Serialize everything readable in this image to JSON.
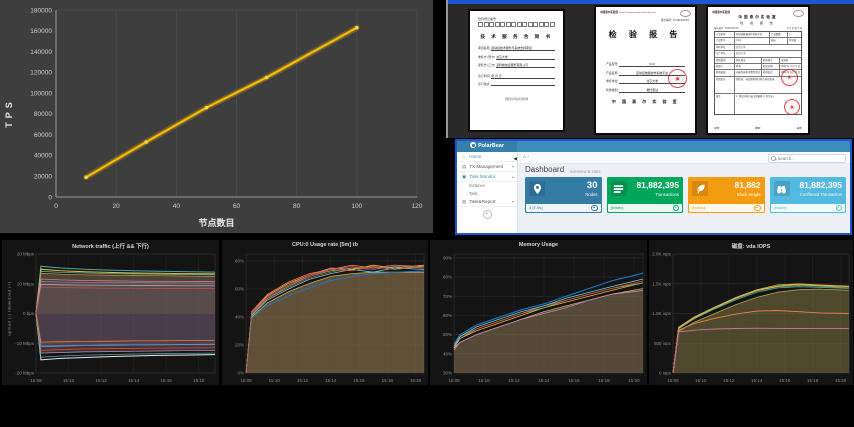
{
  "chart_data": [
    {
      "type": "line",
      "title": "",
      "xlabel": "节点数目",
      "ylabel": "TPS",
      "x": [
        10,
        30,
        50,
        70,
        100
      ],
      "y": [
        19000,
        53000,
        86000,
        115000,
        163000
      ],
      "xlim": [
        0,
        120
      ],
      "ylim": [
        0,
        180000
      ],
      "xtick_step": 20,
      "ytick_step": 20000,
      "line_color": "#ffc000",
      "bg_color": "#3e3e3e",
      "grid": "vertical-only"
    },
    {
      "type": "area",
      "title": "Network traffic (上行 && 下行)",
      "ylabel": "upload (-)  /download (+)",
      "legend_position": "none",
      "ymin": -20,
      "ymax": 20,
      "tmax": 11,
      "yticks": [
        {
          "v": 20,
          "l": "20 Mbps"
        },
        {
          "v": 10,
          "l": "10 Mbps"
        },
        {
          "v": 0,
          "l": "0 bps"
        },
        {
          "v": -10,
          "l": "-10 Mbps"
        },
        {
          "v": -20,
          "l": "-20 Mbps"
        }
      ],
      "xticks": [
        {
          "t": 0,
          "l": "15:08"
        },
        {
          "t": 2,
          "l": "15:10"
        },
        {
          "t": 4,
          "l": "15:12"
        },
        {
          "t": 6,
          "l": "15:14"
        },
        {
          "t": 8,
          "l": "15:16"
        },
        {
          "t": 10,
          "l": "15:18"
        }
      ],
      "t": [
        0,
        0.3,
        1.5,
        3,
        4.5,
        6,
        7.5,
        9,
        11
      ],
      "series": [
        {
          "color": "#c0a080",
          "w": 0.7,
          "fill": "rgba(168,138,100,0.40)",
          "fillTo": 0,
          "values": [
            0,
            13.5,
            13.2,
            13.0,
            12.9,
            12.8,
            12.7,
            12.6,
            12.5
          ]
        },
        {
          "color": "#c090b0",
          "w": 0.7,
          "fill": "rgba(150,110,130,0.35)",
          "fillTo": 0,
          "values": [
            0,
            -13.3,
            -13.1,
            -12.9,
            -12.8,
            -12.7,
            -12.6,
            -12.5,
            -12.5
          ]
        },
        {
          "color": "#9888b8",
          "w": 0.6,
          "fill": "rgba(120,100,140,0.25)",
          "fillTo": 0,
          "values": [
            0,
            10.8,
            10.6,
            10.5,
            10.4,
            10.4,
            10.3,
            10.3,
            10.2
          ]
        },
        {
          "color": "#887898",
          "w": 0.6,
          "fill": "rgba(100,90,120,0.25)",
          "fillTo": 0,
          "values": [
            0,
            -10.9,
            -10.7,
            -10.6,
            -10.5,
            -10.5,
            -10.4,
            -10.4,
            -10.3
          ]
        },
        {
          "color": "#4fa8a8",
          "w": 1,
          "values": [
            0,
            15.9,
            15.3,
            14.9,
            14.6,
            14.4,
            14.2,
            14.1,
            13.9
          ]
        },
        {
          "color": "#d9c34d",
          "w": 1,
          "values": [
            0,
            14.9,
            14.4,
            14.0,
            13.8,
            13.6,
            13.5,
            13.4,
            13.3
          ]
        },
        {
          "color": "#7eb26d",
          "w": 0.8,
          "values": [
            0,
            14.2,
            13.8,
            13.6,
            13.4,
            13.3,
            13.2,
            13.1,
            13.0
          ]
        },
        {
          "color": "#d87ca0",
          "w": 0.8,
          "values": [
            0,
            11.6,
            11.3,
            11.1,
            11.0,
            10.9,
            10.8,
            10.8,
            10.7
          ]
        },
        {
          "color": "#b8b8b8",
          "w": 0.7,
          "values": [
            0,
            9.8,
            9.6,
            9.5,
            9.5,
            9.4,
            9.4,
            9.3,
            9.3
          ]
        },
        {
          "color": "#c05050",
          "w": 0.7,
          "values": [
            0,
            8.9,
            8.7,
            8.6,
            8.5,
            8.5,
            8.4,
            8.4,
            8.4
          ]
        },
        {
          "color": "#e8e8e8",
          "w": 1,
          "values": [
            0,
            -15.6,
            -15.1,
            -14.8,
            -14.5,
            -14.3,
            -14.1,
            -14.0,
            -13.8
          ]
        },
        {
          "color": "#4fa8a8",
          "w": 0.8,
          "values": [
            0,
            -14.7,
            -14.3,
            -14.0,
            -13.8,
            -13.6,
            -13.5,
            -13.4,
            -13.3
          ]
        },
        {
          "color": "#e24d42",
          "w": 0.7,
          "values": [
            0,
            -12.4,
            -12.1,
            -11.9,
            -11.8,
            -11.7,
            -11.6,
            -11.6,
            -11.5
          ]
        },
        {
          "color": "#5794c8",
          "w": 0.8,
          "values": [
            0,
            -11.2,
            -11.0,
            -10.8,
            -10.7,
            -10.6,
            -10.6,
            -10.5,
            -10.5
          ]
        },
        {
          "color": "#ef843c",
          "w": 0.8,
          "values": [
            0,
            -9.6,
            -9.5,
            -9.4,
            -9.3,
            -9.2,
            -9.2,
            -9.1,
            -9.1
          ]
        }
      ]
    },
    {
      "type": "area",
      "title": "CPU:0 Usage rate [5m] tb",
      "legend_position": "none",
      "ymin": 0,
      "ymax": 85,
      "tmax": 12.6,
      "yticks": [
        {
          "v": 80,
          "l": "80%"
        },
        {
          "v": 60,
          "l": "60%"
        },
        {
          "v": 40,
          "l": "40%"
        },
        {
          "v": 20,
          "l": "20%"
        },
        {
          "v": 0,
          "l": "0%"
        }
      ],
      "xticks": [
        {
          "t": 0,
          "l": "15:08"
        },
        {
          "t": 2,
          "l": "15:10"
        },
        {
          "t": 4,
          "l": "15:12"
        },
        {
          "t": 6,
          "l": "15:14"
        },
        {
          "t": 8,
          "l": "15:16"
        },
        {
          "t": 10,
          "l": "15:18"
        },
        {
          "t": 12,
          "l": "15:20"
        }
      ],
      "t": [
        0,
        0.4,
        1.5,
        3,
        4.5,
        6,
        7.5,
        9,
        10.5,
        12.6
      ],
      "series": [
        {
          "color": "#c8a96a",
          "w": 0.8,
          "fill": "rgba(160,130,85,0.55)",
          "values": [
            0,
            40,
            50,
            58,
            64,
            69,
            71,
            72,
            72,
            72
          ]
        },
        {
          "color": "#7eb26d",
          "w": 0.8,
          "values": [
            0,
            42,
            53,
            62,
            69,
            73,
            75,
            74,
            76,
            75
          ]
        },
        {
          "color": "#eab839",
          "w": 0.8,
          "values": [
            0,
            43,
            55,
            64,
            70,
            75,
            74,
            77,
            75,
            77
          ]
        },
        {
          "color": "#6ed0e0",
          "w": 0.8,
          "values": [
            0,
            41,
            52,
            60,
            67,
            71,
            74,
            72,
            75,
            74
          ]
        },
        {
          "color": "#ef843c",
          "w": 0.8,
          "values": [
            0,
            44,
            56,
            65,
            71,
            74,
            77,
            75,
            77,
            76
          ]
        },
        {
          "color": "#e24d42",
          "w": 0.8,
          "values": [
            0,
            42,
            54,
            63,
            70,
            74,
            73,
            76,
            74,
            76
          ]
        },
        {
          "color": "#1f78c1",
          "w": 0.9,
          "values": [
            0,
            39,
            48,
            55,
            61,
            66,
            69,
            71,
            72,
            73
          ]
        },
        {
          "color": "#ba43a9",
          "w": 0.7,
          "values": [
            0,
            43,
            54,
            63,
            69,
            74,
            76,
            74,
            77,
            75
          ]
        },
        {
          "color": "#b87333",
          "w": 0.7,
          "values": [
            0,
            42,
            53,
            61,
            68,
            72,
            75,
            76,
            74,
            76
          ]
        }
      ]
    },
    {
      "type": "area",
      "title": "Memory Usage",
      "legend_position": "none",
      "ymin": 30,
      "ymax": 92,
      "tmax": 12.6,
      "yticks": [
        {
          "v": 90,
          "l": "90%"
        },
        {
          "v": 80,
          "l": "80%"
        },
        {
          "v": 70,
          "l": "70%"
        },
        {
          "v": 60,
          "l": "60%"
        },
        {
          "v": 50,
          "l": "50%"
        },
        {
          "v": 40,
          "l": "40%"
        },
        {
          "v": 30,
          "l": "30%"
        }
      ],
      "xticks": [
        {
          "t": 0,
          "l": "15:08"
        },
        {
          "t": 2,
          "l": "15:10"
        },
        {
          "t": 4,
          "l": "15:12"
        },
        {
          "t": 6,
          "l": "15:14"
        },
        {
          "t": 8,
          "l": "15:16"
        },
        {
          "t": 10,
          "l": "15:18"
        },
        {
          "t": 12,
          "l": "15:20"
        }
      ],
      "t": [
        0,
        0.4,
        1.5,
        3,
        4.5,
        6,
        7.5,
        9,
        10.5,
        12.6
      ],
      "series": [
        {
          "color": "#c8a96a",
          "w": 0.8,
          "fill": "rgba(150,125,90,0.50)",
          "values": [
            43,
            46,
            50,
            54,
            58,
            62,
            65,
            68,
            71,
            74
          ]
        },
        {
          "color": "#d683ce",
          "w": 0.7,
          "values": [
            42,
            46,
            50,
            54,
            58,
            61,
            64,
            68,
            71,
            73
          ]
        },
        {
          "color": "#eab839",
          "w": 0.8,
          "values": [
            43,
            48,
            52,
            56,
            60,
            64,
            67,
            70,
            73,
            77
          ]
        },
        {
          "color": "#7eb26d",
          "w": 0.8,
          "values": [
            44,
            48,
            53,
            57,
            61,
            64,
            68,
            71,
            74,
            77
          ]
        },
        {
          "color": "#e24d42",
          "w": 0.8,
          "values": [
            44,
            49,
            53,
            57,
            61,
            65,
            68,
            71,
            74,
            78
          ]
        },
        {
          "color": "#6ed0e0",
          "w": 0.8,
          "values": [
            44,
            49,
            54,
            58,
            62,
            65,
            69,
            72,
            75,
            79
          ]
        },
        {
          "color": "#1f78c1",
          "w": 1.1,
          "values": [
            45,
            50,
            55,
            59,
            63,
            66,
            70,
            74,
            78,
            82
          ]
        }
      ]
    },
    {
      "type": "area",
      "title": "磁盘: vda IOPS",
      "legend_position": "none",
      "ymin": 0,
      "ymax": 2000,
      "tmax": 12.6,
      "yticks": [
        {
          "v": 2000,
          "l": "2.0K iops"
        },
        {
          "v": 1500,
          "l": "1.5K iops"
        },
        {
          "v": 1000,
          "l": "1.0K iops"
        },
        {
          "v": 500,
          "l": "500 iops"
        },
        {
          "v": 0,
          "l": "0 iops"
        }
      ],
      "xticks": [
        {
          "t": 0,
          "l": "15:08"
        },
        {
          "t": 2,
          "l": "15:10"
        },
        {
          "t": 4,
          "l": "15:12"
        },
        {
          "t": 6,
          "l": "15:14"
        },
        {
          "t": 8,
          "l": "15:16"
        },
        {
          "t": 10,
          "l": "15:18"
        },
        {
          "t": 12,
          "l": "15:20"
        }
      ],
      "t": [
        0,
        0.4,
        1.5,
        3,
        4.5,
        6,
        7.5,
        9,
        10.5,
        12.6
      ],
      "series": [
        {
          "color": "#b3a04a",
          "w": 0.8,
          "fill": "rgba(135,125,70,0.50)",
          "values": [
            0,
            700,
            850,
            1000,
            1150,
            1270,
            1360,
            1400,
            1410,
            1390
          ]
        },
        {
          "color": "#5aa8a0",
          "w": 0.8,
          "values": [
            0,
            740,
            910,
            1080,
            1230,
            1360,
            1430,
            1450,
            1440,
            1420
          ]
        },
        {
          "color": "#7eb26d",
          "w": 0.8,
          "values": [
            0,
            750,
            920,
            1090,
            1250,
            1380,
            1450,
            1470,
            1460,
            1430
          ]
        },
        {
          "color": "#eab839",
          "w": 0.9,
          "values": [
            0,
            760,
            930,
            1100,
            1260,
            1390,
            1460,
            1490,
            1470,
            1450
          ]
        },
        {
          "color": "#c8b050",
          "w": 0.8,
          "values": [
            0,
            770,
            940,
            1110,
            1270,
            1400,
            1480,
            1500,
            1480,
            1460
          ]
        },
        {
          "color": "#ef843c",
          "w": 0.9,
          "values": [
            0,
            720,
            830,
            920,
            990,
            1040,
            1050,
            1030,
            1010,
            1000
          ]
        },
        {
          "color": "#d06ca0",
          "w": 0.9,
          "values": [
            0,
            690,
            720,
            740,
            748,
            752,
            750,
            748,
            747,
            750
          ]
        }
      ]
    }
  ],
  "docs": {
    "contract": {
      "reg_label": "合同登记编号:",
      "title": "技 术 服 务 合 同 书",
      "fields": [
        {
          "label": "项目名称:",
          "value": "区块链技术服务与系统支持项目"
        },
        {
          "label": "委托方:(甲方)",
          "value": "北京大学"
        },
        {
          "label": "受托方:(乙方)",
          "value": "某科技信息服务有限公司"
        },
        {
          "label": "签订时间:",
          "value": "年    月    日"
        },
        {
          "label": "签订地点:",
          "value": ""
        }
      ],
      "footer": "国家科学技术部印制"
    },
    "report_cover": {
      "org": "中国泰尔实验室",
      "org_en": "China Telecommunication Technology Labs",
      "report_no_label": "报告编号:",
      "report_no_value": "TC2019XXXX",
      "title": "检 验 报 告",
      "fields": [
        {
          "label": "产品型号:",
          "value": "V1.0"
        },
        {
          "label": "产品名称:",
          "value": "区块链数据协作系统平台"
        },
        {
          "label": "委托单位:",
          "value": "北京大学"
        },
        {
          "label": "检验类别:",
          "value": "委托测试"
        }
      ],
      "footer": "中 国 泰 尔 实 验 室"
    },
    "report_detail": {
      "org": "中国泰尔实验室",
      "header1": "中国泰尔实验室",
      "header2": "检 验 报 告",
      "report_no_label": "报告编号: TC2019XXXX",
      "page_label": "共 X 页  第 X 页",
      "rows": [
        [
          "产品名称",
          "区块链数据协作系统平台",
          "产品数量",
          "1"
        ],
        [
          "产品型号",
          "V1.0",
          "商标",
          "区块链"
        ],
        [
          "委托单位",
          "北京大学",
          "",
          ""
        ],
        [
          "生产单位",
          "北京大学",
          "",
          ""
        ],
        [
          "检验类别",
          "委托测试",
          "检验地点",
          "实验室"
        ],
        [
          "检验人",
          "检测",
          "检验日期",
          "2020 年 X 月 X 日"
        ],
        [
          "检验依据",
          "功能性能和可靠性测试",
          "检验结论",
          "2020 年 X 月 X 日"
        ],
        [
          "检验结论",
          "经检验，样品所检项目符合委托要求。",
          "",
          ""
        ],
        [
          "备注",
          "1. 测试环境为云主机集群 2. 其余无。",
          "",
          ""
        ]
      ],
      "sign_labels": [
        "批准:",
        "审核:",
        "主检:"
      ]
    }
  },
  "dashboard": {
    "brand": "PolarBear",
    "sidebar": {
      "items": [
        {
          "label": "Home",
          "icon": "home-icon"
        },
        {
          "label": "TX Management",
          "icon": "tx-management-icon"
        },
        {
          "label": "Task Monitor",
          "icon": "task-monitor-icon",
          "children": [
            {
              "label": "Instance"
            },
            {
              "label": "Task"
            }
          ]
        },
        {
          "label": "Task&Report",
          "icon": "task-report-icon"
        }
      ]
    },
    "breadcrumb_home": "⌂",
    "breadcrumb_sep": "›",
    "search_placeholder": "Search...",
    "title": "Dashboard",
    "subtitle": "overview & stats",
    "cards": [
      {
        "value": "30",
        "label": "Nodes",
        "footer": "4 (T-9s)",
        "color": "#357ca5",
        "icon": "map-pin-icon"
      },
      {
        "value": "81,882,395",
        "label": "Transactions",
        "footer": "(tx/sec)",
        "color": "#00a65a",
        "icon": "list-bars-icon"
      },
      {
        "value": "81,882",
        "label": "Block Height",
        "footer": "(tx/sec)",
        "color": "#f39c12",
        "icon": "leaf-icon"
      },
      {
        "value": "81,882,395",
        "label": "Confirmed Transaction",
        "footer": "(tx/sec)",
        "color": "#54b9e0",
        "icon": "binoculars-icon"
      }
    ]
  },
  "colors": {
    "accent_blue_border": "#1d55d4",
    "navbar": "#3c8dbc",
    "tps_line": "#ffc000",
    "grafana_bg": "#141414"
  }
}
